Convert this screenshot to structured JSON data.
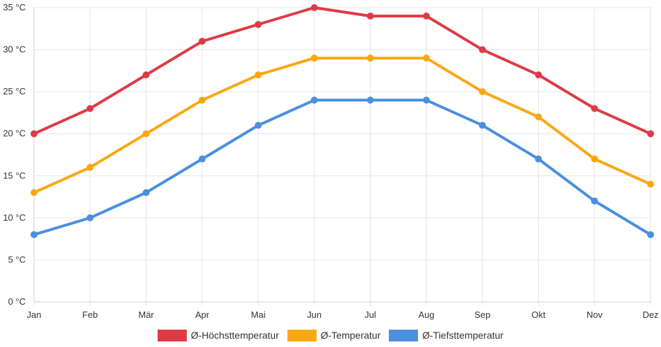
{
  "chart_data": {
    "type": "line",
    "title": "",
    "xlabel": "",
    "ylabel": "",
    "unit": "°C",
    "ylim": [
      0,
      35
    ],
    "ytick_step": 5,
    "grid": true,
    "legend_position": "bottom",
    "categories": [
      "Jan",
      "Feb",
      "Mär",
      "Apr",
      "Mai",
      "Jun",
      "Jul",
      "Aug",
      "Sep",
      "Okt",
      "Nov",
      "Dez"
    ],
    "series": [
      {
        "name": "Ø-Höchsttemperatur",
        "color": "#e03a45",
        "values": [
          20,
          23,
          27,
          31,
          33,
          35,
          34,
          34,
          30,
          27,
          23,
          20
        ]
      },
      {
        "name": "Ø-Temperatur",
        "color": "#fba713",
        "values": [
          13,
          16,
          20,
          24,
          27,
          29,
          29,
          29,
          25,
          22,
          17,
          14
        ]
      },
      {
        "name": "Ø-Tiefsttemperatur",
        "color": "#4a8fe0",
        "values": [
          8,
          10,
          13,
          17,
          21,
          24,
          24,
          24,
          21,
          17,
          12,
          8
        ]
      }
    ]
  }
}
